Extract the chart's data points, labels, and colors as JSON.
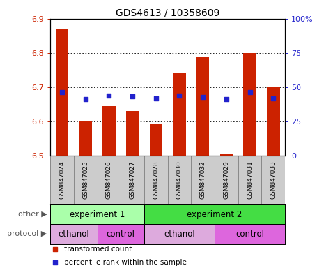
{
  "title": "GDS4613 / 10358609",
  "samples": [
    "GSM847024",
    "GSM847025",
    "GSM847026",
    "GSM847027",
    "GSM847028",
    "GSM847030",
    "GSM847032",
    "GSM847029",
    "GSM847031",
    "GSM847033"
  ],
  "bar_values": [
    6.87,
    6.6,
    6.645,
    6.63,
    6.595,
    6.74,
    6.79,
    6.505,
    6.8,
    6.7
  ],
  "dot_values": [
    6.685,
    6.665,
    6.675,
    6.673,
    6.667,
    6.675,
    6.672,
    6.665,
    6.685,
    6.668
  ],
  "ymin": 6.5,
  "ymax": 6.9,
  "yticks": [
    6.5,
    6.6,
    6.7,
    6.8,
    6.9
  ],
  "y2ticks": [
    0,
    25,
    50,
    75,
    100
  ],
  "y2labels": [
    "0",
    "25",
    "50",
    "75",
    "100%"
  ],
  "bar_color": "#CC2200",
  "dot_color": "#2222CC",
  "grid_color": "#000000",
  "left_label_color": "#CC2200",
  "right_label_color": "#2222CC",
  "groups_other": [
    {
      "label": "experiment 1",
      "start": 0,
      "end": 4,
      "color": "#AAFFAA"
    },
    {
      "label": "experiment 2",
      "start": 4,
      "end": 10,
      "color": "#44DD44"
    }
  ],
  "groups_protocol": [
    {
      "label": "ethanol",
      "start": 0,
      "end": 2,
      "color": "#DDAADD"
    },
    {
      "label": "control",
      "start": 2,
      "end": 4,
      "color": "#DD66DD"
    },
    {
      "label": "ethanol",
      "start": 4,
      "end": 7,
      "color": "#DDAADD"
    },
    {
      "label": "control",
      "start": 7,
      "end": 10,
      "color": "#DD66DD"
    }
  ],
  "other_label": "other",
  "protocol_label": "protocol",
  "legend_items": [
    {
      "color": "#CC2200",
      "marker": "s",
      "label": "transformed count"
    },
    {
      "color": "#2222CC",
      "marker": "s",
      "label": "percentile rank within the sample"
    }
  ],
  "sample_bg_color": "#CCCCCC",
  "sample_border_color": "#888888"
}
